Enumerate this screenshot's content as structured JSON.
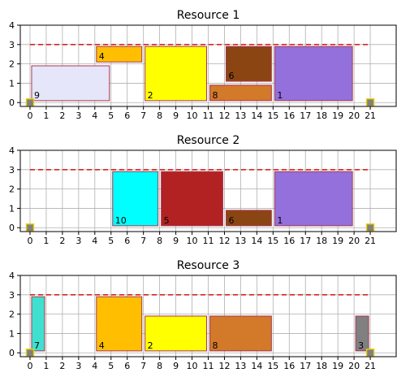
{
  "chart_data": [
    {
      "type": "bar",
      "title": "Resource 1",
      "xlim": [
        0,
        21
      ],
      "ylim": [
        0,
        4
      ],
      "x_ticks": [
        0,
        1,
        2,
        3,
        4,
        5,
        6,
        7,
        8,
        9,
        10,
        11,
        12,
        13,
        14,
        15,
        16,
        17,
        18,
        19,
        20,
        21
      ],
      "y_ticks": [
        0,
        1,
        2,
        3,
        4
      ],
      "grid": true,
      "capacity": 3,
      "capacity_color": "#dd2222",
      "markers": [
        0,
        21
      ],
      "tasks": [
        {
          "label": "9",
          "start": 0.1,
          "end": 4.9,
          "y0": 0.1,
          "y1": 1.9,
          "color": "#e6e6fa"
        },
        {
          "label": "4",
          "start": 4.1,
          "end": 6.9,
          "y0": 2.1,
          "y1": 2.9,
          "color": "#ffbf00"
        },
        {
          "label": "2",
          "start": 7.1,
          "end": 10.9,
          "y0": 0.1,
          "y1": 2.9,
          "color": "#ffff00"
        },
        {
          "label": "8",
          "start": 11.1,
          "end": 14.9,
          "y0": 0.1,
          "y1": 0.9,
          "color": "#d2792a"
        },
        {
          "label": "6",
          "start": 12.1,
          "end": 14.9,
          "y0": 1.1,
          "y1": 2.9,
          "color": "#8b4513"
        },
        {
          "label": "1",
          "start": 15.1,
          "end": 19.9,
          "y0": 0.1,
          "y1": 2.9,
          "color": "#9370db"
        }
      ]
    },
    {
      "type": "bar",
      "title": "Resource 2",
      "xlim": [
        0,
        21
      ],
      "ylim": [
        0,
        4
      ],
      "x_ticks": [
        0,
        1,
        2,
        3,
        4,
        5,
        6,
        7,
        8,
        9,
        10,
        11,
        12,
        13,
        14,
        15,
        16,
        17,
        18,
        19,
        20,
        21
      ],
      "y_ticks": [
        0,
        1,
        2,
        3,
        4
      ],
      "grid": true,
      "capacity": 3,
      "capacity_color": "#dd2222",
      "markers": [
        0,
        21
      ],
      "tasks": [
        {
          "label": "10",
          "start": 5.1,
          "end": 7.9,
          "y0": 0.1,
          "y1": 2.9,
          "color": "#00ffff"
        },
        {
          "label": "5",
          "start": 8.1,
          "end": 11.9,
          "y0": 0.1,
          "y1": 2.9,
          "color": "#b22222"
        },
        {
          "label": "6",
          "start": 12.1,
          "end": 14.9,
          "y0": 0.1,
          "y1": 0.9,
          "color": "#8b4513"
        },
        {
          "label": "1",
          "start": 15.1,
          "end": 19.9,
          "y0": 0.1,
          "y1": 2.9,
          "color": "#9370db"
        }
      ]
    },
    {
      "type": "bar",
      "title": "Resource 3",
      "xlim": [
        0,
        21
      ],
      "ylim": [
        0,
        4
      ],
      "x_ticks": [
        0,
        1,
        2,
        3,
        4,
        5,
        6,
        7,
        8,
        9,
        10,
        11,
        12,
        13,
        14,
        15,
        16,
        17,
        18,
        19,
        20,
        21
      ],
      "y_ticks": [
        0,
        1,
        2,
        3,
        4
      ],
      "grid": true,
      "capacity": 3,
      "capacity_color": "#dd2222",
      "markers": [
        0,
        21
      ],
      "tasks": [
        {
          "label": "7",
          "start": 0.1,
          "end": 0.9,
          "y0": 0.1,
          "y1": 2.9,
          "color": "#40e0d0"
        },
        {
          "label": "4",
          "start": 4.1,
          "end": 6.9,
          "y0": 0.1,
          "y1": 2.9,
          "color": "#ffbf00"
        },
        {
          "label": "2",
          "start": 7.1,
          "end": 10.9,
          "y0": 0.1,
          "y1": 1.9,
          "color": "#ffff00"
        },
        {
          "label": "8",
          "start": 11.1,
          "end": 14.9,
          "y0": 0.1,
          "y1": 1.9,
          "color": "#d2792a"
        },
        {
          "label": "3",
          "start": 20.1,
          "end": 20.9,
          "y0": 0.1,
          "y1": 1.9,
          "color": "#808080"
        }
      ]
    }
  ]
}
